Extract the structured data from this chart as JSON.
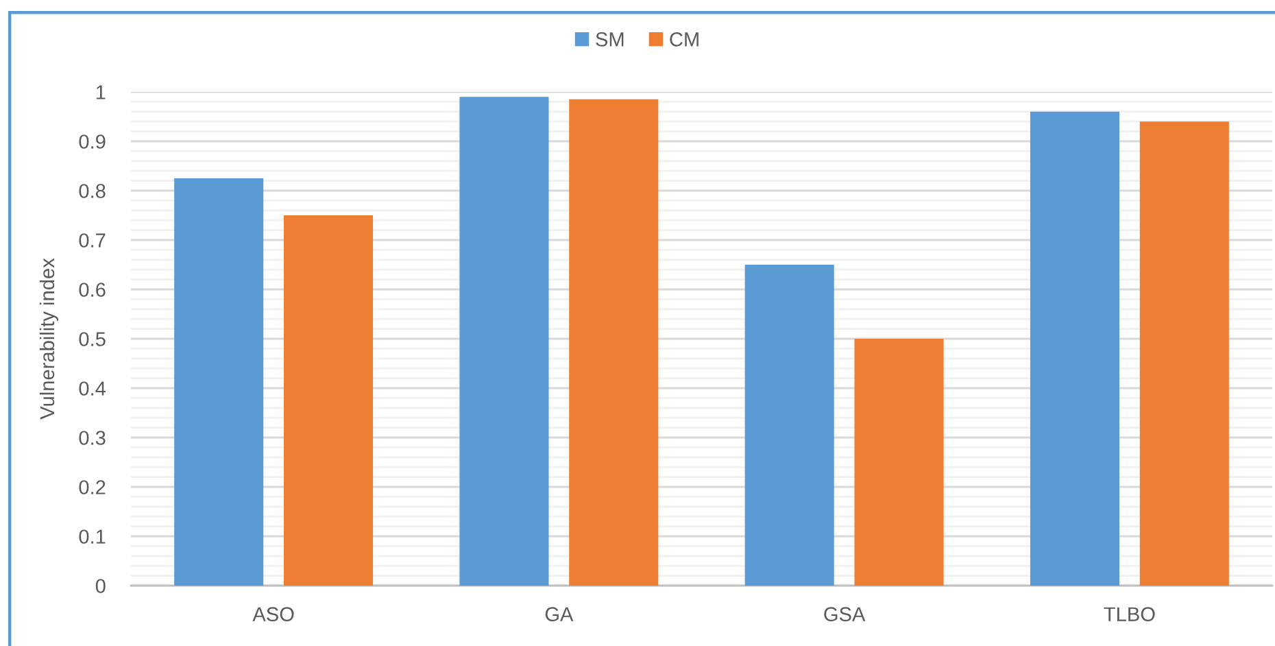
{
  "chart_data": {
    "type": "bar",
    "categories": [
      "ASO",
      "GA",
      "GSA",
      "TLBO"
    ],
    "series": [
      {
        "name": "SM",
        "color": "#5b9bd5",
        "values": [
          0.825,
          0.99,
          0.65,
          0.96
        ]
      },
      {
        "name": "CM",
        "color": "#ed7d31",
        "values": [
          0.75,
          0.985,
          0.5,
          0.94
        ]
      }
    ],
    "ylabel": "Vulnerability index",
    "ylim": [
      0,
      1
    ],
    "yticks": [
      0,
      {
        "value": 0.02,
        "label": null
      },
      {
        "value": 0.04,
        "label": null
      },
      {
        "value": 0.06,
        "label": null
      },
      {
        "value": 0.08,
        "label": null
      },
      0.1,
      {
        "value": 0.12,
        "label": null
      },
      {
        "value": 0.14,
        "label": null
      },
      {
        "value": 0.16,
        "label": null
      },
      {
        "value": 0.18,
        "label": null
      },
      0.2,
      {
        "value": 0.22,
        "label": null
      },
      {
        "value": 0.24,
        "label": null
      },
      {
        "value": 0.26,
        "label": null
      },
      {
        "value": 0.28,
        "label": null
      },
      0.3,
      {
        "value": 0.32,
        "label": null
      },
      {
        "value": 0.34,
        "label": null
      },
      {
        "value": 0.36,
        "label": null
      },
      {
        "value": 0.38,
        "label": null
      },
      0.4,
      {
        "value": 0.42,
        "label": null
      },
      {
        "value": 0.44,
        "label": null
      },
      {
        "value": 0.46,
        "label": null
      },
      {
        "value": 0.48,
        "label": null
      },
      0.5,
      {
        "value": 0.52,
        "label": null
      },
      {
        "value": 0.54,
        "label": null
      },
      {
        "value": 0.56,
        "label": null
      },
      {
        "value": 0.58,
        "label": null
      },
      0.6,
      {
        "value": 0.62,
        "label": null
      },
      {
        "value": 0.64,
        "label": null
      },
      {
        "value": 0.66,
        "label": null
      },
      {
        "value": 0.68,
        "label": null
      },
      0.7,
      {
        "value": 0.72,
        "label": null
      },
      {
        "value": 0.74,
        "label": null
      },
      {
        "value": 0.76,
        "label": null
      },
      {
        "value": 0.78,
        "label": null
      },
      0.8,
      {
        "value": 0.82,
        "label": null
      },
      {
        "value": 0.84,
        "label": null
      },
      {
        "value": 0.86,
        "label": null
      },
      {
        "value": 0.88,
        "label": null
      },
      0.9,
      {
        "value": 0.92,
        "label": null
      },
      {
        "value": 0.94,
        "label": null
      },
      {
        "value": 0.96,
        "label": null
      },
      {
        "value": 0.98,
        "label": null
      },
      1
    ],
    "grid": "y",
    "legend": "top"
  }
}
